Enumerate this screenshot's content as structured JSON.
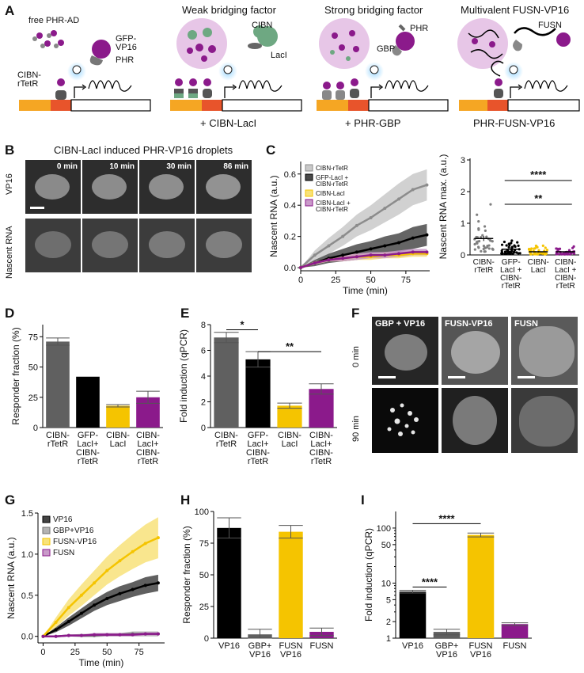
{
  "panels": {
    "A": {
      "letter": "A",
      "titles": [
        "Weak bridging factor",
        "Strong bridging factor",
        "Multivalent FUSN-VP16"
      ],
      "labels": {
        "free_phr_ad": "free PHR-AD",
        "gfp_vp16": "GFP-\nVP16",
        "phr1": "PHR",
        "cibn_rtetr": "CIBN-\nrTetR",
        "cibn": "CIBN",
        "laci": "LacI",
        "phr2": "PHR",
        "gbp": "GBP",
        "fusn": "FUSN"
      },
      "captions": [
        "+ CIBN-LacI",
        "+ PHR-GBP",
        "PHR-FUSN-VP16"
      ]
    },
    "B": {
      "letter": "B",
      "title": "CIBN-LacI induced PHR-VP16 droplets",
      "times": [
        "0 min",
        "10 min",
        "30 min",
        "86 min"
      ],
      "rows": [
        "VP16",
        "Nascent RNA"
      ]
    },
    "F": {
      "letter": "F",
      "columns": [
        "GBP + VP16",
        "FUSN-VP16",
        "FUSN"
      ],
      "rows": [
        "0 min",
        "90 min"
      ]
    }
  },
  "chart_data": [
    {
      "id": "C-left",
      "letter": "C",
      "type": "line",
      "xlabel": "Time (min)",
      "ylabel": "Nascent RNA (a.u.)",
      "xlim": [
        0,
        92
      ],
      "ylim": [
        -0.02,
        0.68
      ],
      "xticks": [
        0,
        25,
        50,
        75
      ],
      "yticks": [
        0.0,
        0.2,
        0.4,
        0.6
      ],
      "legend": [
        "CIBN-rTetR",
        "GFP-LacI +\nCIBN-rTetR",
        "CIBN-LacI",
        "CIBN-LacI +\nCIBN-rTetR"
      ],
      "series": [
        {
          "name": "CIBN-rTetR",
          "color": "#8c8c8c",
          "band": "#c9c9c9",
          "x": [
            0,
            10,
            20,
            30,
            40,
            50,
            60,
            70,
            80,
            90
          ],
          "y": [
            0.0,
            0.08,
            0.14,
            0.2,
            0.27,
            0.32,
            0.38,
            0.44,
            0.5,
            0.53
          ],
          "err": [
            0.0,
            0.03,
            0.05,
            0.06,
            0.07,
            0.08,
            0.09,
            0.1,
            0.1,
            0.1
          ]
        },
        {
          "name": "GFP-LacI +\nCIBN-rTetR",
          "color": "#000000",
          "band": "#4a4a4a",
          "x": [
            0,
            10,
            20,
            30,
            40,
            50,
            60,
            70,
            80,
            90
          ],
          "y": [
            0.0,
            0.03,
            0.06,
            0.08,
            0.1,
            0.12,
            0.14,
            0.16,
            0.19,
            0.21
          ],
          "err": [
            0.0,
            0.02,
            0.03,
            0.04,
            0.05,
            0.05,
            0.06,
            0.06,
            0.07,
            0.07
          ]
        },
        {
          "name": "CIBN-LacI",
          "color": "#f5c400",
          "band": "#f8e27a",
          "x": [
            0,
            10,
            20,
            30,
            40,
            50,
            60,
            70,
            80,
            90
          ],
          "y": [
            0.0,
            0.03,
            0.05,
            0.06,
            0.07,
            0.07,
            0.08,
            0.08,
            0.09,
            0.09
          ],
          "err": [
            0.0,
            0.01,
            0.01,
            0.02,
            0.02,
            0.02,
            0.02,
            0.02,
            0.02,
            0.02
          ]
        },
        {
          "name": "CIBN-LacI +\nCIBN-rTetR",
          "color": "#8b1a8b",
          "band": "#c99ac9",
          "x": [
            0,
            10,
            20,
            30,
            40,
            50,
            60,
            70,
            80,
            90
          ],
          "y": [
            0.0,
            0.03,
            0.05,
            0.06,
            0.07,
            0.08,
            0.08,
            0.09,
            0.1,
            0.1
          ],
          "err": [
            0.0,
            0.01,
            0.01,
            0.02,
            0.02,
            0.02,
            0.02,
            0.02,
            0.02,
            0.02
          ]
        }
      ]
    },
    {
      "id": "C-right",
      "type": "scatter",
      "ylabel": "Nascent RNA max. (a.u.)",
      "ylim": [
        0,
        3.05
      ],
      "yticks": [
        0,
        1,
        2,
        3
      ],
      "categories": [
        "CIBN-\nrTetR",
        "GFP-\nLacI +\nCIBN-\nrTetR",
        "CIBN-\nLacI",
        "CIBN-\nLacI +\nCIBN-\nrTetR"
      ],
      "colors": [
        "#808080",
        "#000000",
        "#f5c400",
        "#8b1a8b"
      ],
      "means": [
        0.52,
        0.18,
        0.1,
        0.1
      ],
      "sems": [
        0.08,
        0.04,
        0.02,
        0.02
      ],
      "annotations": [
        {
          "text": "****",
          "from": 1,
          "to": 3,
          "y": 2.35
        },
        {
          "text": "**",
          "from": 1,
          "to": 3,
          "y": 1.6
        }
      ]
    },
    {
      "id": "D",
      "letter": "D",
      "type": "bar",
      "ylabel": "Responder fraction (%)",
      "ylim": [
        0,
        85
      ],
      "yticks": [
        0,
        25,
        50,
        75
      ],
      "categories": [
        "CIBN-\nrTetR",
        "GFP-\nLacI+\nCIBN-\nrTetR",
        "CIBN-\nLacI",
        "CIBN-\nLacI+\nCIBN-\nrTetR"
      ],
      "values": [
        71,
        42,
        18,
        25
      ],
      "errors": [
        3,
        0,
        1,
        5
      ],
      "colors": [
        "#606060",
        "#000000",
        "#f5c400",
        "#8b1a8b"
      ]
    },
    {
      "id": "E",
      "letter": "E",
      "type": "bar",
      "ylabel": "Fold induction (qPCR)",
      "ylim": [
        0,
        8
      ],
      "yticks": [
        0,
        2,
        4,
        6,
        8
      ],
      "categories": [
        "CIBN-\nrTetR",
        "GFP-\nLacI+\nCIBN-\nrTetR",
        "CIBN-\nLacI",
        "CIBN-\nLacI+\nCIBN-\nrTetR"
      ],
      "values": [
        7.0,
        5.3,
        1.7,
        3.0
      ],
      "errors": [
        0.4,
        0.6,
        0.2,
        0.4
      ],
      "colors": [
        "#606060",
        "#000000",
        "#f5c400",
        "#8b1a8b"
      ],
      "annotations": [
        {
          "text": "*",
          "from": 0,
          "to": 1,
          "y": 7.6
        },
        {
          "text": "**",
          "from": 1,
          "to": 3,
          "y": 5.9
        }
      ]
    },
    {
      "id": "G",
      "letter": "G",
      "type": "line",
      "xlabel": "Time (min)",
      "ylabel": "Nascent RNA (a.u.)",
      "xlim": [
        -4,
        95
      ],
      "ylim": [
        -0.08,
        1.5
      ],
      "xticks": [
        0,
        25,
        50,
        75
      ],
      "yticks": [
        0.0,
        0.5,
        1.0,
        1.5
      ],
      "legend": [
        "VP16",
        "GBP+VP16",
        "FUSN-VP16",
        "FUSN"
      ],
      "series": [
        {
          "name": "VP16",
          "color": "#000000",
          "band": "#444444",
          "x": [
            0,
            10,
            20,
            30,
            40,
            50,
            60,
            70,
            80,
            90
          ],
          "y": [
            0.0,
            0.08,
            0.18,
            0.28,
            0.38,
            0.46,
            0.52,
            0.57,
            0.62,
            0.65
          ],
          "err": [
            0.0,
            0.03,
            0.05,
            0.06,
            0.07,
            0.08,
            0.09,
            0.09,
            0.1,
            0.1
          ]
        },
        {
          "name": "GBP+VP16",
          "color": "#707070",
          "band": "#b3b3b3",
          "x": [
            0,
            10,
            20,
            30,
            40,
            50,
            60,
            70,
            80,
            90
          ],
          "y": [
            0.0,
            0.0,
            0.01,
            0.01,
            0.01,
            0.02,
            0.02,
            0.03,
            0.03,
            0.03
          ],
          "err": [
            0.0,
            0.01,
            0.01,
            0.02,
            0.02,
            0.02,
            0.02,
            0.03,
            0.03,
            0.03
          ]
        },
        {
          "name": "FUSN-VP16",
          "color": "#f5c400",
          "band": "#f8e27a",
          "x": [
            0,
            10,
            20,
            30,
            40,
            50,
            60,
            70,
            80,
            90
          ],
          "y": [
            0.0,
            0.17,
            0.35,
            0.5,
            0.65,
            0.8,
            0.92,
            1.03,
            1.13,
            1.2
          ],
          "err": [
            0.0,
            0.06,
            0.1,
            0.13,
            0.15,
            0.17,
            0.19,
            0.21,
            0.23,
            0.25
          ]
        },
        {
          "name": "FUSN",
          "color": "#8b1a8b",
          "band": "#c99ac9",
          "x": [
            0,
            10,
            20,
            30,
            40,
            50,
            60,
            70,
            80,
            90
          ],
          "y": [
            0.0,
            0.0,
            0.01,
            0.01,
            0.02,
            0.02,
            0.02,
            0.02,
            0.03,
            0.03
          ],
          "err": [
            0.0,
            0.01,
            0.01,
            0.01,
            0.02,
            0.02,
            0.02,
            0.02,
            0.02,
            0.02
          ]
        }
      ]
    },
    {
      "id": "H",
      "letter": "H",
      "type": "bar",
      "ylabel": "Responder fraction (%)",
      "ylim": [
        0,
        100
      ],
      "yticks": [
        0,
        25,
        50,
        75,
        100
      ],
      "categories": [
        "VP16",
        "GBP+\nVP16",
        "FUSN\nVP16",
        "FUSN"
      ],
      "values": [
        87,
        3,
        84,
        5
      ],
      "errors": [
        8,
        4,
        5,
        3
      ],
      "colors": [
        "#000000",
        "#606060",
        "#f5c400",
        "#8b1a8b"
      ]
    },
    {
      "id": "I",
      "letter": "I",
      "type": "bar",
      "scale": "log",
      "ylabel": "Fold induction (qPCR)",
      "ylim": [
        1,
        200
      ],
      "yticks": [
        1,
        2,
        5,
        10,
        50,
        100
      ],
      "categories": [
        "VP16",
        "GBP+\nVP16",
        "FUSN\nVP16",
        "FUSN"
      ],
      "values": [
        7.0,
        1.3,
        75,
        1.8
      ],
      "errors": [
        0.4,
        0.15,
        6,
        0.1
      ],
      "colors": [
        "#000000",
        "#606060",
        "#f5c400",
        "#8b1a8b"
      ],
      "annotations": [
        {
          "text": "****",
          "from": 0,
          "to": 2,
          "y": 120
        },
        {
          "text": "****",
          "from": 0,
          "to": 1,
          "y": 8.5
        }
      ]
    }
  ]
}
